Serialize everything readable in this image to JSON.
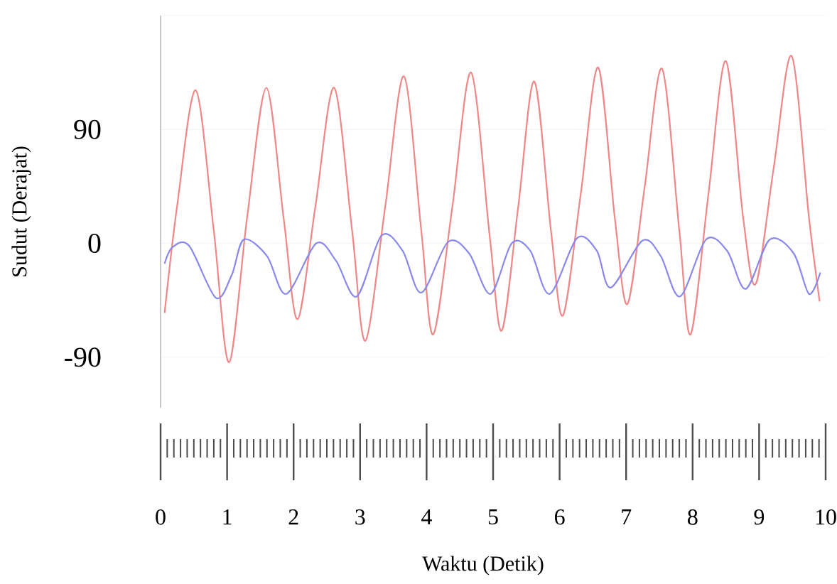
{
  "chart_data": {
    "type": "line",
    "xlabel": "Waktu (Detik)",
    "ylabel": "Sudut (Derajat)",
    "xlim": [
      0,
      10
    ],
    "ylim": [
      -130,
      180
    ],
    "xticks": [
      0,
      1,
      2,
      3,
      4,
      5,
      6,
      7,
      8,
      9,
      10
    ],
    "yticks": [
      -90,
      0,
      90,
      {
        "value": 180,
        "label": null
      }
    ],
    "grid": "y",
    "series": [
      {
        "color": "#f08888",
        "x": [
          0.06,
          0.25,
          0.53,
          0.8,
          1.03,
          1.3,
          1.59,
          1.85,
          2.06,
          2.33,
          2.61,
          2.88,
          3.08,
          3.38,
          3.66,
          3.92,
          4.1,
          4.39,
          4.67,
          4.95,
          5.13,
          5.38,
          5.62,
          5.87,
          6.05,
          6.32,
          6.58,
          6.83,
          7.02,
          7.28,
          7.54,
          7.8,
          7.97,
          8.24,
          8.5,
          8.76,
          8.95,
          9.22,
          9.49,
          9.75,
          9.91
        ],
        "values": [
          -55,
          30,
          121,
          10,
          -94,
          20,
          123,
          20,
          -60,
          30,
          123,
          10,
          -77,
          30,
          132,
          10,
          -72,
          30,
          135,
          5,
          -69,
          30,
          128,
          10,
          -57,
          40,
          139,
          20,
          -48,
          45,
          138,
          10,
          -72,
          40,
          144,
          20,
          -32,
          60,
          148,
          20,
          -46
        ]
      },
      {
        "color": "#8888ee",
        "x": [
          0.06,
          0.18,
          0.43,
          0.83,
          1.07,
          1.25,
          1.6,
          1.89,
          2.34,
          2.64,
          2.95,
          3.32,
          3.64,
          3.92,
          4.32,
          4.64,
          4.96,
          5.28,
          5.56,
          5.85,
          6.26,
          6.56,
          6.77,
          7.24,
          7.52,
          7.81,
          8.2,
          8.52,
          8.8,
          9.16,
          9.52,
          9.75,
          9.92
        ],
        "values": [
          -16,
          -3,
          -2,
          -43,
          -25,
          3,
          -10,
          -40,
          0,
          -14,
          -42,
          6,
          -6,
          -39,
          1,
          -8,
          -40,
          0,
          -6,
          -40,
          4,
          -6,
          -35,
          2,
          -10,
          -42,
          3,
          -6,
          -36,
          3,
          -8,
          -40,
          -23
        ]
      }
    ]
  }
}
